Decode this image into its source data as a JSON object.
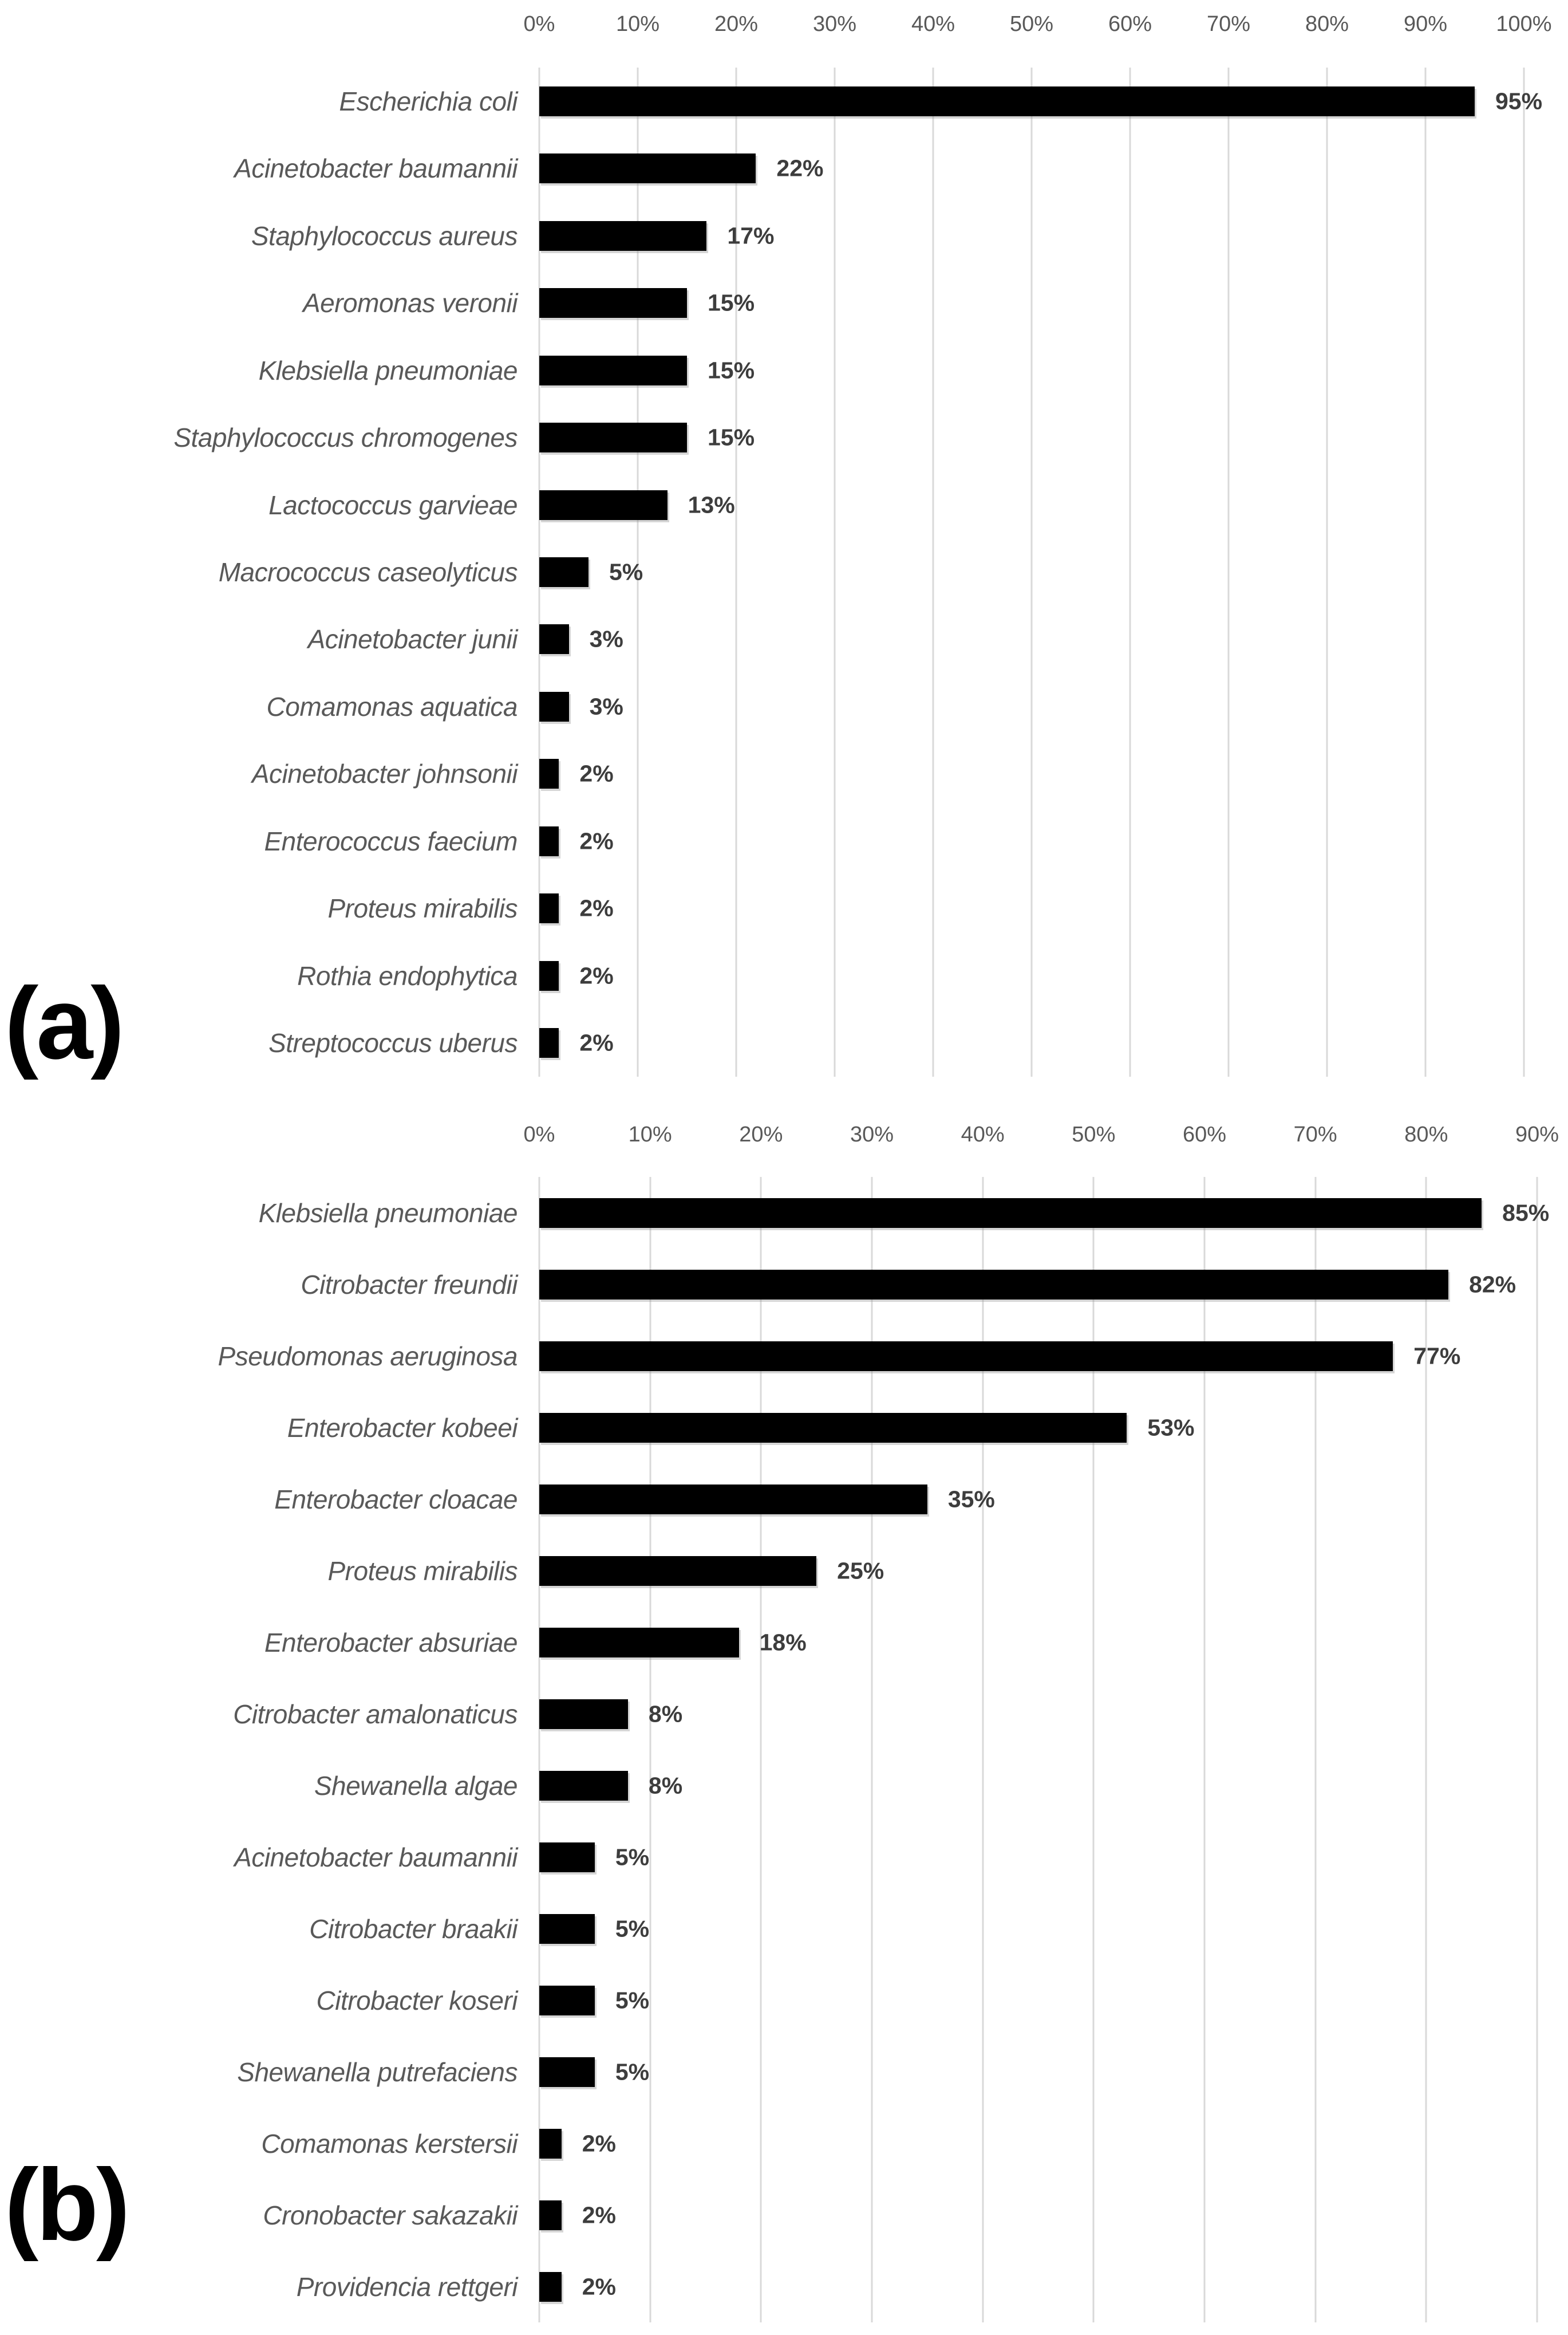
{
  "colors": {
    "background": "#ffffff",
    "bar": "#000000",
    "gridline": "#d9d9d9",
    "axis_text": "#595959",
    "category_text": "#595959",
    "value_text": "#3d3d3d",
    "panel_text": "#000000"
  },
  "chart_data": [
    {
      "type": "bar",
      "orientation": "horizontal",
      "panel_label": "(a)",
      "title": "",
      "xlabel": "",
      "ylabel": "",
      "grid": true,
      "legend": false,
      "axis": {
        "position": "top",
        "min": 0,
        "max": 100,
        "tick_step": 10,
        "tick_labels": [
          "0%",
          "10%",
          "20%",
          "30%",
          "40%",
          "50%",
          "60%",
          "70%",
          "80%",
          "90%",
          "100%"
        ]
      },
      "categories": [
        "Escherichia coli",
        "Acinetobacter baumannii",
        "Staphylococcus aureus",
        "Aeromonas veronii",
        "Klebsiella pneumoniae",
        "Staphylococcus chromogenes",
        "Lactococcus garvieae",
        "Macrococcus caseolyticus",
        "Acinetobacter junii",
        "Comamonas aquatica",
        "Acinetobacter johnsonii",
        "Enterococcus faecium",
        "Proteus mirabilis",
        "Rothia endophytica",
        "Streptococcus uberus"
      ],
      "values": [
        95,
        22,
        17,
        15,
        15,
        15,
        13,
        5,
        3,
        3,
        2,
        2,
        2,
        2,
        2
      ],
      "value_labels": [
        "95%",
        "22%",
        "17%",
        "15%",
        "15%",
        "15%",
        "13%",
        "5%",
        "3%",
        "3%",
        "2%",
        "2%",
        "2%",
        "2%",
        "2%"
      ]
    },
    {
      "type": "bar",
      "orientation": "horizontal",
      "panel_label": "(b)",
      "title": "",
      "xlabel": "",
      "ylabel": "",
      "grid": true,
      "legend": false,
      "axis": {
        "position": "top",
        "min": 0,
        "max": 90,
        "tick_step": 10,
        "tick_labels": [
          "0%",
          "10%",
          "20%",
          "30%",
          "40%",
          "50%",
          "60%",
          "70%",
          "80%",
          "90%"
        ]
      },
      "categories": [
        "Klebsiella pneumoniae",
        "Citrobacter freundii",
        "Pseudomonas aeruginosa",
        "Enterobacter kobeei",
        "Enterobacter cloacae",
        "Proteus mirabilis",
        "Enterobacter absuriae",
        "Citrobacter amalonaticus",
        "Shewanella algae",
        "Acinetobacter baumannii",
        "Citrobacter braakii",
        "Citrobacter koseri",
        "Shewanella putrefaciens",
        "Comamonas kerstersii",
        "Cronobacter sakazakii",
        "Providencia rettgeri"
      ],
      "values": [
        85,
        82,
        77,
        53,
        35,
        25,
        18,
        8,
        8,
        5,
        5,
        5,
        5,
        2,
        2,
        2
      ],
      "value_labels": [
        "85%",
        "82%",
        "77%",
        "53%",
        "35%",
        "25%",
        "18%",
        "8%",
        "8%",
        "5%",
        "5%",
        "5%",
        "5%",
        "2%",
        "2%",
        "2%"
      ]
    }
  ]
}
